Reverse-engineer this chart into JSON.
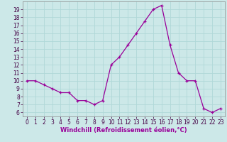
{
  "x": [
    0,
    1,
    2,
    3,
    4,
    5,
    6,
    7,
    8,
    9,
    10,
    11,
    12,
    13,
    14,
    15,
    16,
    17,
    18,
    19,
    20,
    21,
    22,
    23
  ],
  "y": [
    10,
    10,
    9.5,
    9,
    8.5,
    8.5,
    7.5,
    7.5,
    7,
    7.5,
    12,
    13,
    14.5,
    16,
    17.5,
    19,
    19.5,
    14.5,
    11,
    10,
    10,
    6.5,
    6,
    6.5
  ],
  "line_color": "#990099",
  "marker": "+",
  "bg_color": "#cce8e8",
  "grid_color": "#b0d8d8",
  "xlabel": "Windchill (Refroidissement éolien,°C)",
  "ylim": [
    5.5,
    20.0
  ],
  "xlim": [
    -0.5,
    23.5
  ],
  "yticks": [
    6,
    7,
    8,
    9,
    10,
    11,
    12,
    13,
    14,
    15,
    16,
    17,
    18,
    19
  ],
  "xticks": [
    0,
    1,
    2,
    3,
    4,
    5,
    6,
    7,
    8,
    9,
    10,
    11,
    12,
    13,
    14,
    15,
    16,
    17,
    18,
    19,
    20,
    21,
    22,
    23
  ],
  "tick_fontsize": 5.5,
  "xlabel_fontsize": 6.0,
  "line_width": 0.9,
  "marker_size": 3.5
}
